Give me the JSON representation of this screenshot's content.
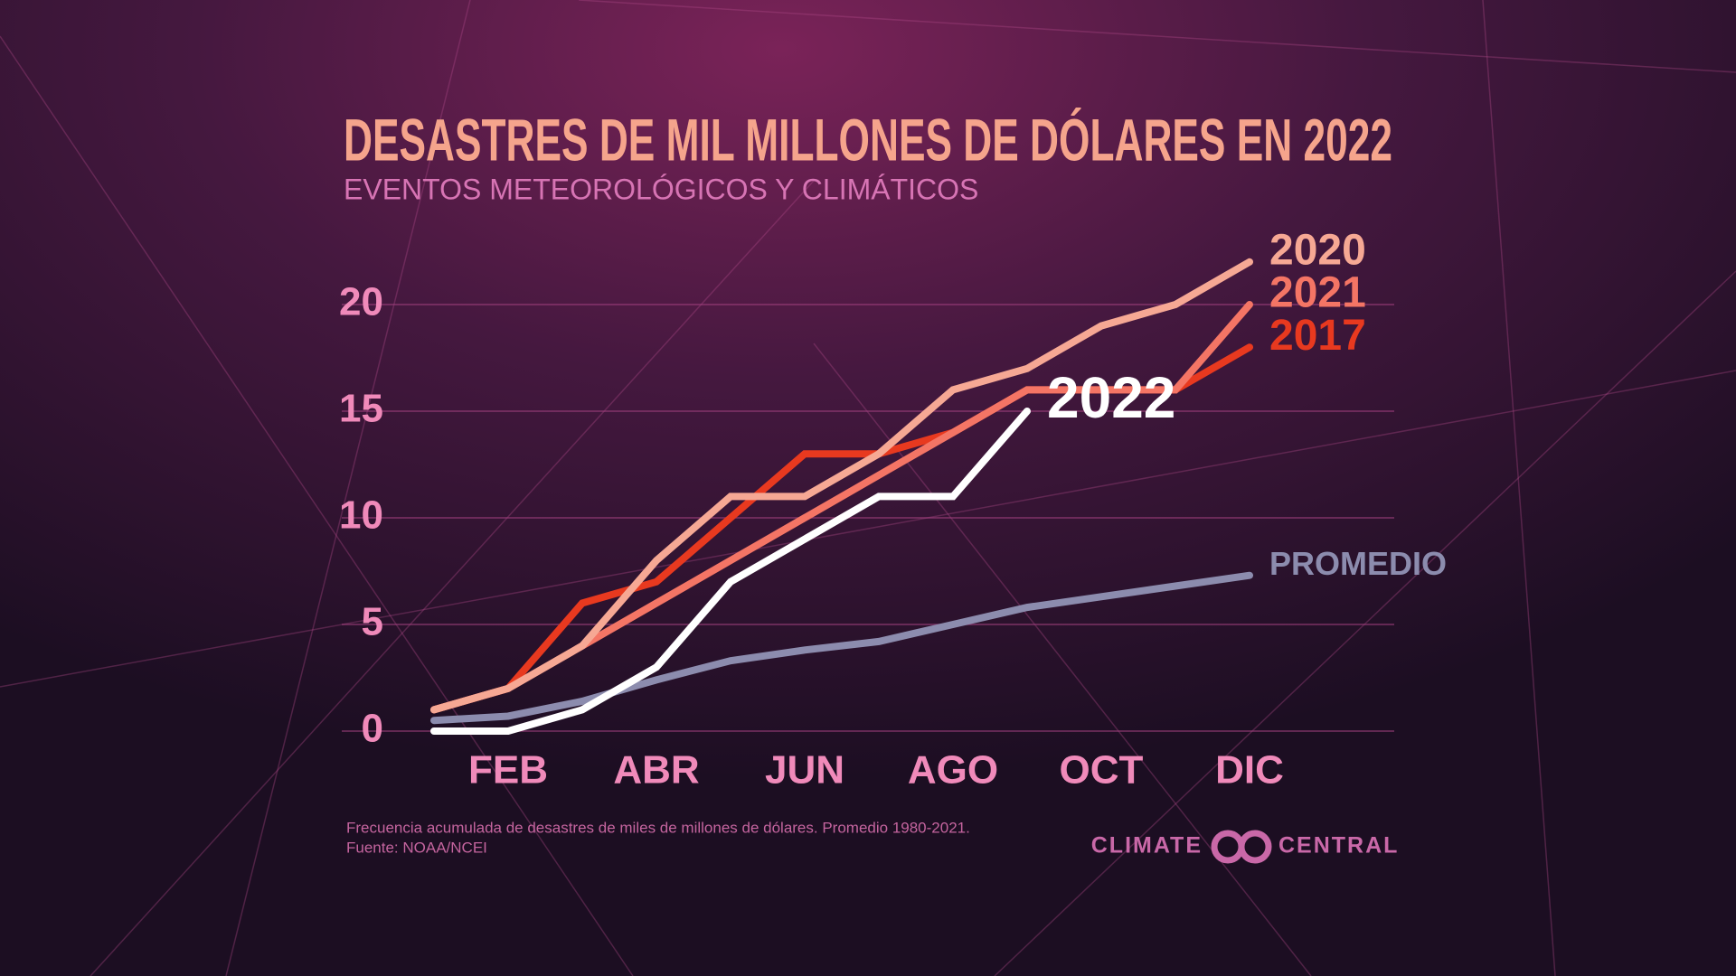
{
  "chart_data": {
    "type": "line",
    "title": "DESASTRES DE MIL MILLONES DE DÓLARES EN 2022",
    "subtitle": "EVENTOS METEOROLÓGICOS Y CLIMÁTICOS",
    "categories": [
      null,
      "FEB",
      null,
      "ABR",
      null,
      "JUN",
      null,
      "AGO",
      null,
      "OCT",
      null,
      "DIC"
    ],
    "series": [
      {
        "name": "PROMEDIO",
        "color": "#8c8cae",
        "values": [
          0.5,
          0.7,
          1.4,
          2.4,
          3.3,
          3.8,
          4.2,
          5.0,
          5.8,
          6.3,
          6.8,
          7.3
        ]
      },
      {
        "name": "2017",
        "color": "#e8391f",
        "values": [
          1,
          2,
          6,
          7,
          10,
          13,
          13,
          14,
          16,
          16,
          16,
          18
        ]
      },
      {
        "name": "2021",
        "color": "#f47565",
        "values": [
          1,
          2,
          4,
          6,
          8,
          10,
          12,
          14,
          16,
          16,
          16,
          20
        ]
      },
      {
        "name": "2020",
        "color": "#f6a894",
        "values": [
          1,
          2,
          4,
          8,
          11,
          11,
          13,
          16,
          17,
          19,
          20,
          22
        ]
      },
      {
        "name": "2022",
        "color": "#ffffff",
        "values": [
          0,
          0,
          1,
          3,
          7,
          9,
          11,
          11,
          15,
          null,
          null,
          null
        ]
      }
    ],
    "ylim": [
      0,
      22
    ],
    "yticks": [
      0,
      5,
      10,
      15,
      20
    ],
    "grid": true,
    "footnote": "Frecuencia acumulada de desastres de miles de millones de dólares. Promedio 1980-2021.",
    "source": "Fuente: NOAA/NCEI",
    "logo": [
      "CLIMATE",
      "CENTRAL"
    ]
  }
}
